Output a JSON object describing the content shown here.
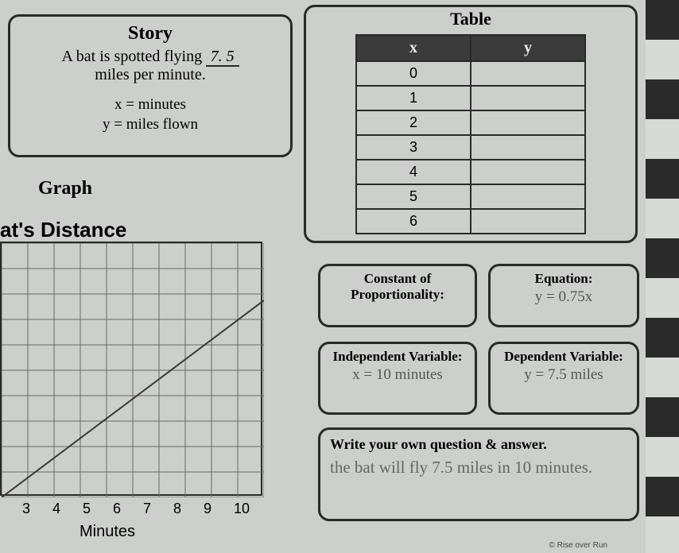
{
  "story": {
    "title": "Story",
    "line1a": "A bat is spotted flying",
    "blank": "7. 5",
    "line2": "miles per minute.",
    "def1": "x = minutes",
    "def2": "y = miles flown"
  },
  "graph": {
    "section_label": "Graph",
    "title_partial": "at's Distance",
    "x_axis_label": "Minutes",
    "x_ticks": [
      "3",
      "4",
      "5",
      "6",
      "7",
      "8",
      "9",
      "10"
    ],
    "grid_rows": 10,
    "grid_cols": 10,
    "grid_color": "#6a6a6a",
    "line_color": "#3a3a3a",
    "line_points": [
      [
        0,
        320
      ],
      [
        330,
        72
      ]
    ]
  },
  "table": {
    "title": "Table",
    "header_x": "x",
    "header_y": "y",
    "rows": [
      {
        "x": "0",
        "y": ""
      },
      {
        "x": "1",
        "y": ""
      },
      {
        "x": "2",
        "y": ""
      },
      {
        "x": "3",
        "y": ""
      },
      {
        "x": "4",
        "y": ""
      },
      {
        "x": "5",
        "y": ""
      },
      {
        "x": "6",
        "y": ""
      }
    ]
  },
  "cop": {
    "label": "Constant of Proportionality:",
    "value": ""
  },
  "eq": {
    "label": "Equation:",
    "value": "y = 0.75x"
  },
  "iv": {
    "label": "Independent Variable:",
    "value": "x = 10 minutes"
  },
  "dv": {
    "label": "Dependent Variable:",
    "value": "y = 7.5 miles"
  },
  "qa": {
    "label": "Write your own question & answer.",
    "answer": "the bat will fly 7.5 miles in 10 minutes."
  },
  "credit": "© Rise over Run"
}
